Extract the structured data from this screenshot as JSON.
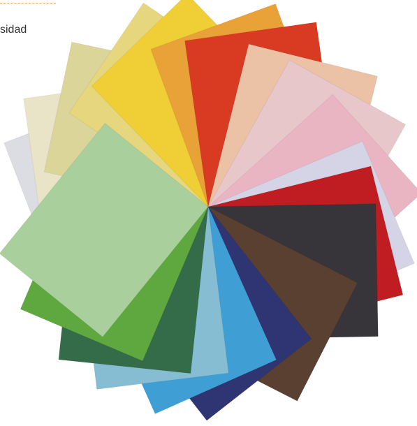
{
  "text": "sidad"
}
